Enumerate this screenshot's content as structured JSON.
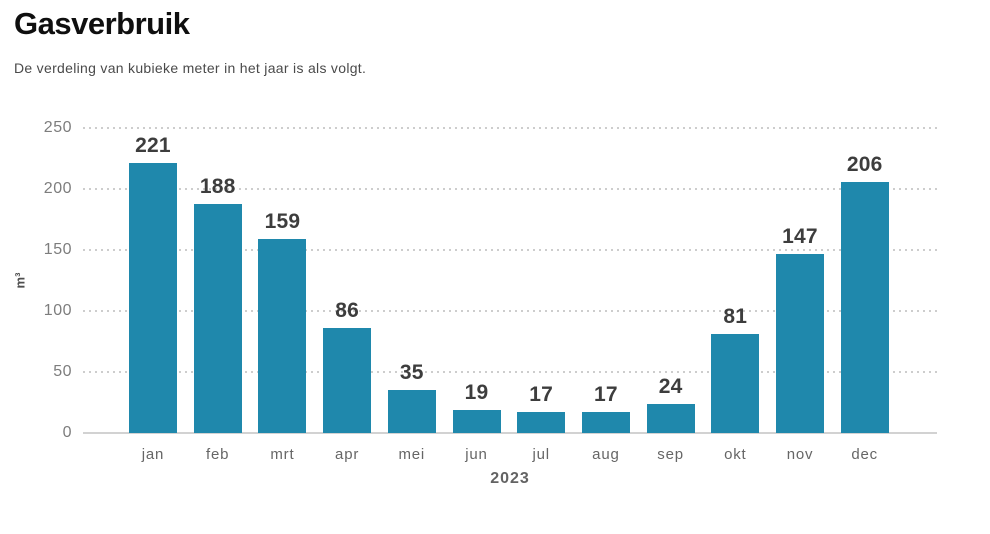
{
  "header": {
    "title": "Gasverbruik",
    "subtitle": "De verdeling van kubieke meter in het jaar is als volgt."
  },
  "chart_data": {
    "type": "bar",
    "title": "Gasverbruik",
    "subtitle": "De verdeling van kubieke meter in het jaar is als volgt.",
    "categories": [
      "jan",
      "feb",
      "mrt",
      "apr",
      "mei",
      "jun",
      "jul",
      "aug",
      "sep",
      "okt",
      "nov",
      "dec"
    ],
    "values": [
      221,
      188,
      159,
      86,
      35,
      19,
      17,
      17,
      24,
      81,
      147,
      206
    ],
    "value_labels": [
      "221",
      "188",
      "159",
      "86",
      "35",
      "19",
      "17",
      "17",
      "24",
      "81",
      "147",
      "206"
    ],
    "xlabel": "2023",
    "ylabel": "m³",
    "ylim": [
      0,
      250
    ],
    "yticks": [
      0,
      50,
      100,
      150,
      200,
      250
    ],
    "grid": "horizontal-dotted",
    "legend": "none",
    "colors": {
      "bar": "#1f88ac",
      "value_label": "#3d3d3d",
      "tick_label": "#7d7d7d",
      "month_label": "#666666",
      "gridline": "#cdcdcd",
      "title": "#0f0f0f",
      "subtitle": "#4a4a4a"
    }
  }
}
